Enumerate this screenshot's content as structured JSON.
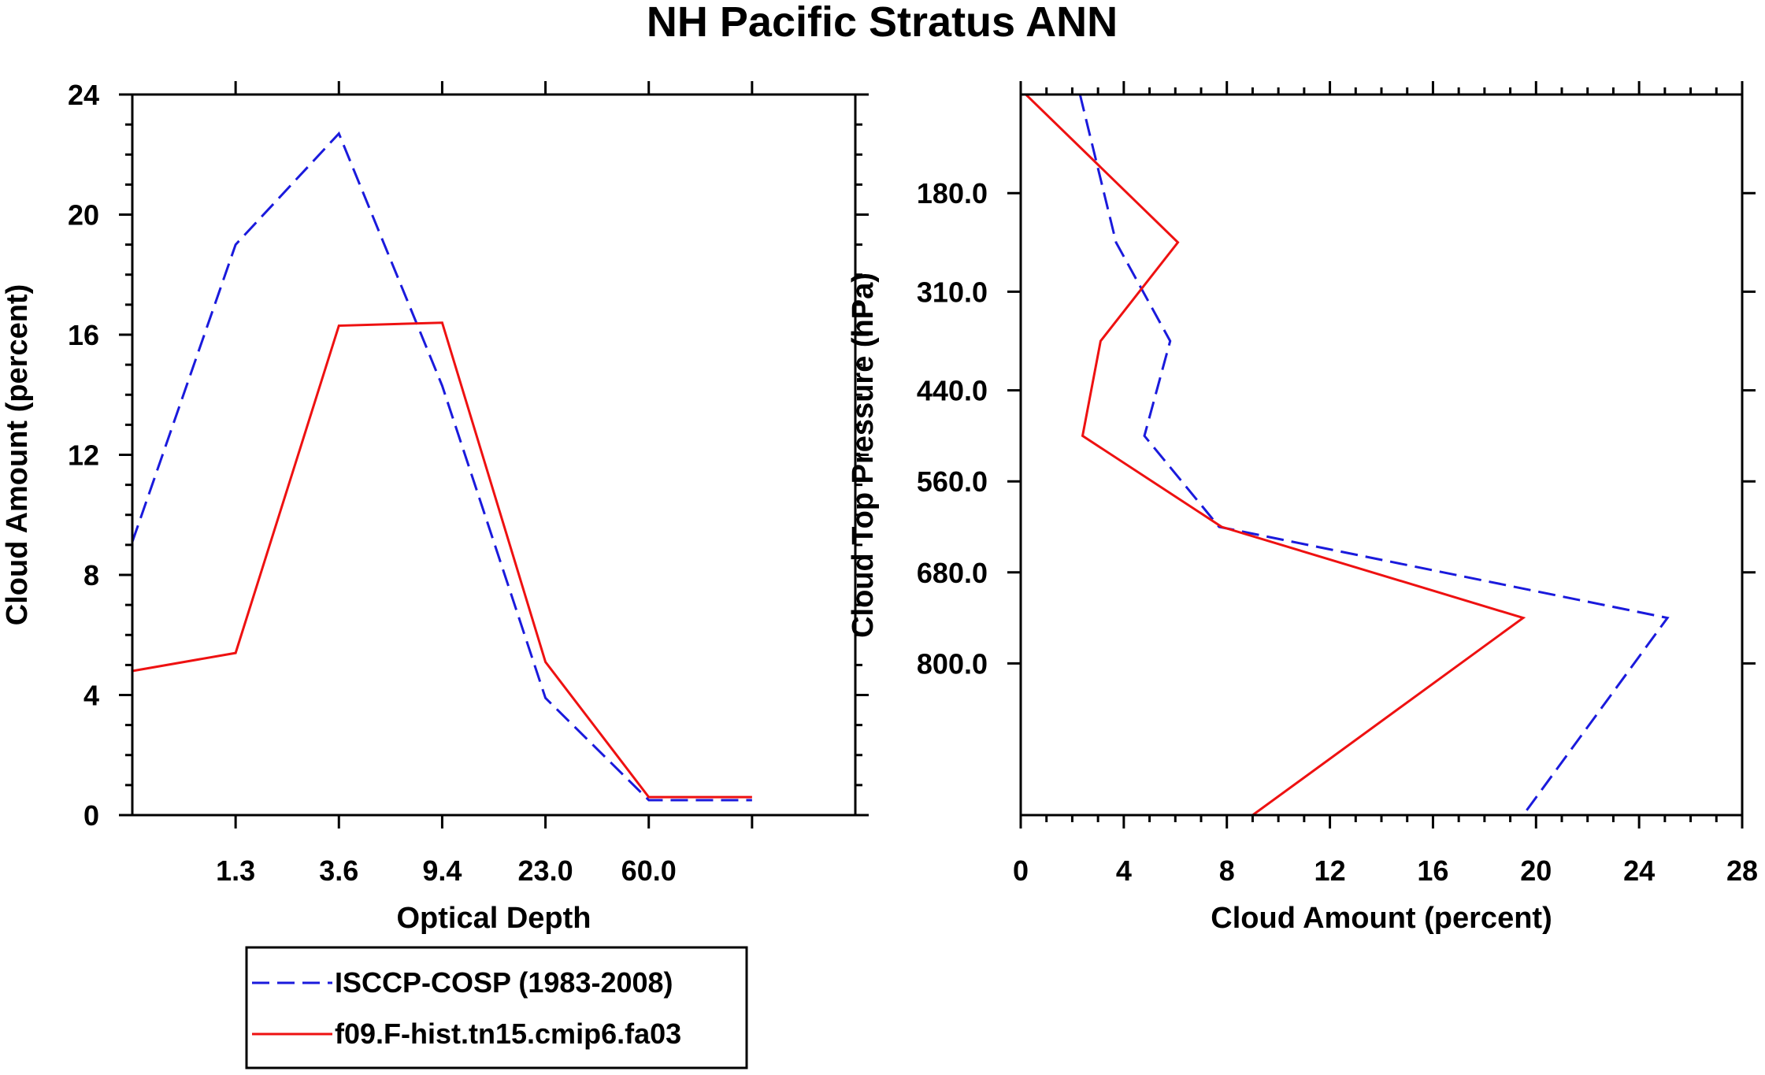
{
  "title": "NH Pacific Stratus ANN",
  "colors": {
    "obs": "#1a1adc",
    "model": "#ee1111",
    "axis": "#000000"
  },
  "legend": {
    "entries": [
      {
        "label": "ISCCP-COSP (1983-2008)",
        "style": "dashed",
        "color": "#1a1adc"
      },
      {
        "label": "f09.F-hist.tn15.cmip6.fa03",
        "style": "solid",
        "color": "#ee1111"
      }
    ]
  },
  "chart_data": [
    {
      "type": "line",
      "panel": "left",
      "xlabel": "Optical Depth",
      "ylabel": "Cloud Amount (percent)",
      "xlim": [
        0,
        7
      ],
      "ylim": [
        0,
        24
      ],
      "xticks": [
        1,
        2,
        3,
        4,
        5,
        6
      ],
      "xtick_labels": [
        "1.3",
        "3.6",
        "9.4",
        "23.0",
        "60.0"
      ],
      "xtick_label_positions": [
        1,
        2,
        3,
        4,
        5
      ],
      "yticks": [
        0,
        4,
        8,
        12,
        16,
        20,
        24
      ],
      "ytick_labels": [
        "0",
        "4",
        "8",
        "12",
        "16",
        "20",
        "24"
      ],
      "series": [
        {
          "name": "ISCCP-COSP (1983-2008)",
          "style": "dashed",
          "x": [
            0,
            1,
            2,
            3,
            4,
            5,
            6
          ],
          "y": [
            9.1,
            19.0,
            22.7,
            14.3,
            3.9,
            0.5,
            0.5
          ]
        },
        {
          "name": "f09.F-hist.tn15.cmip6.fa03",
          "style": "solid",
          "x": [
            0,
            1,
            2,
            3,
            4,
            5,
            6
          ],
          "y": [
            4.8,
            5.4,
            16.3,
            16.4,
            5.1,
            0.6,
            0.6
          ]
        }
      ]
    },
    {
      "type": "line",
      "panel": "right",
      "xlabel": "Cloud Amount (percent)",
      "ylabel": "Cloud Top Pressure (hPa)",
      "xlim": [
        0,
        28
      ],
      "ylim": [
        50,
        1000
      ],
      "xticks": [
        0,
        4,
        8,
        12,
        16,
        20,
        24,
        28
      ],
      "xtick_labels": [
        "0",
        "4",
        "8",
        "12",
        "16",
        "20",
        "24",
        "28"
      ],
      "yticks": [
        180,
        310,
        440,
        560,
        680,
        800
      ],
      "ytick_labels": [
        "180.0",
        "310.0",
        "440.0",
        "560.0",
        "680.0",
        "800.0"
      ],
      "series": [
        {
          "name": "ISCCP-COSP (1983-2008)",
          "style": "dashed",
          "pressure": [
            50,
            245,
            375,
            500,
            620,
            740,
            1000
          ],
          "amount": [
            2.3,
            3.7,
            5.8,
            4.8,
            7.7,
            25.1,
            19.5
          ]
        },
        {
          "name": "f09.F-hist.tn15.cmip6.fa03",
          "style": "solid",
          "pressure": [
            50,
            245,
            375,
            500,
            620,
            740,
            1000
          ],
          "amount": [
            0.2,
            6.1,
            3.1,
            2.4,
            7.8,
            19.5,
            9.0
          ]
        }
      ]
    }
  ]
}
